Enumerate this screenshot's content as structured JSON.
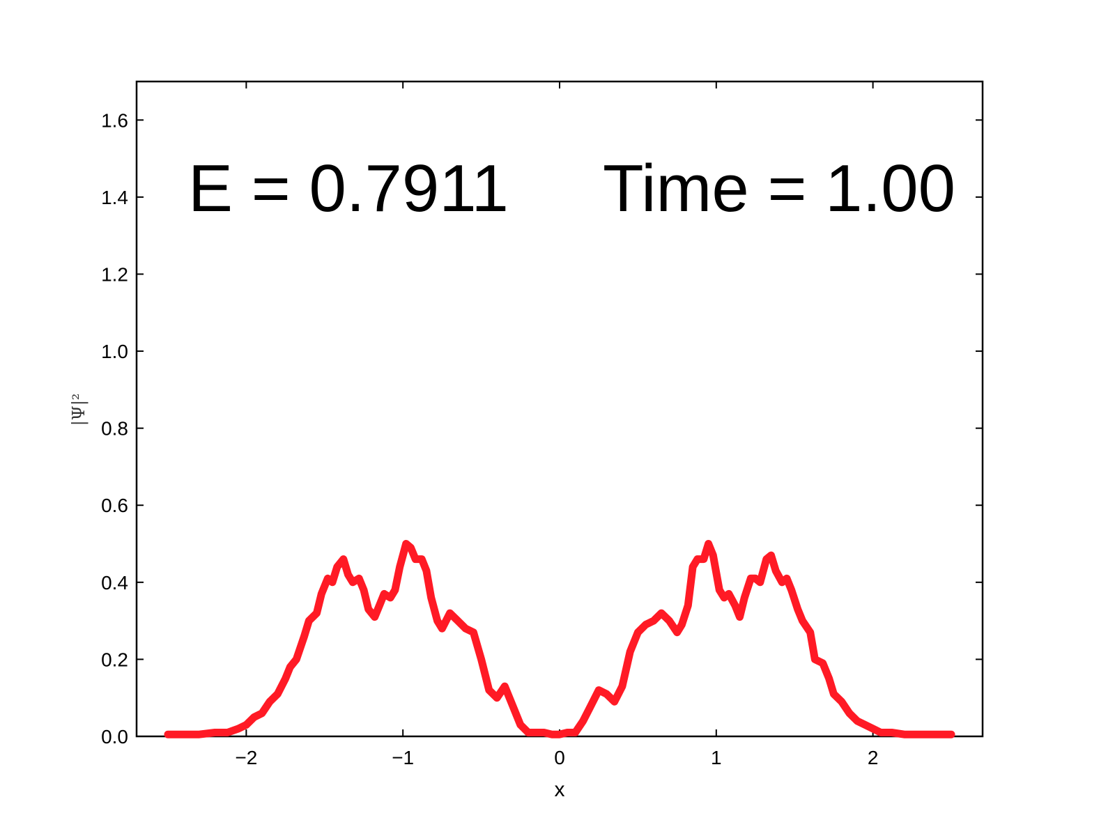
{
  "chart_data": {
    "type": "line",
    "title": "",
    "xlabel": "x",
    "ylabel": "|Ψ|²",
    "xlim": [
      -2.7,
      2.7
    ],
    "ylim": [
      0,
      1.7
    ],
    "xticks": [
      {
        "value": -2,
        "label": "−2"
      },
      {
        "value": -1,
        "label": "−1"
      },
      {
        "value": 0,
        "label": "0"
      },
      {
        "value": 1,
        "label": "1"
      },
      {
        "value": 2,
        "label": "2"
      }
    ],
    "yticks": [
      {
        "value": 0.0,
        "label": "0.0"
      },
      {
        "value": 0.2,
        "label": "0.2"
      },
      {
        "value": 0.4,
        "label": "0.4"
      },
      {
        "value": 0.6,
        "label": "0.6"
      },
      {
        "value": 0.8,
        "label": "0.8"
      },
      {
        "value": 1.0,
        "label": "1.0"
      },
      {
        "value": 1.2,
        "label": "1.2"
      },
      {
        "value": 1.4,
        "label": "1.4"
      },
      {
        "value": 1.6,
        "label": "1.6"
      }
    ],
    "grid": false,
    "annotations": {
      "energy": "E = 0.7911",
      "time": "Time = 1.00"
    },
    "series": [
      {
        "color": "#ff1a25",
        "x": [
          -2.5,
          -2.4,
          -2.3,
          -2.2,
          -2.12,
          -2.05,
          -2.0,
          -1.95,
          -1.9,
          -1.85,
          -1.8,
          -1.75,
          -1.72,
          -1.68,
          -1.63,
          -1.6,
          -1.55,
          -1.52,
          -1.48,
          -1.45,
          -1.42,
          -1.38,
          -1.35,
          -1.32,
          -1.28,
          -1.25,
          -1.22,
          -1.18,
          -1.15,
          -1.12,
          -1.08,
          -1.05,
          -1.02,
          -0.98,
          -0.95,
          -0.92,
          -0.88,
          -0.85,
          -0.82,
          -0.78,
          -0.75,
          -0.7,
          -0.65,
          -0.6,
          -0.55,
          -0.5,
          -0.45,
          -0.4,
          -0.35,
          -0.3,
          -0.25,
          -0.2,
          -0.15,
          -0.1,
          -0.05,
          0.0,
          0.05,
          0.1,
          0.15,
          0.2,
          0.25,
          0.3,
          0.35,
          0.4,
          0.45,
          0.5,
          0.55,
          0.6,
          0.65,
          0.7,
          0.75,
          0.78,
          0.82,
          0.85,
          0.88,
          0.92,
          0.95,
          0.98,
          1.02,
          1.05,
          1.08,
          1.12,
          1.15,
          1.18,
          1.22,
          1.25,
          1.28,
          1.32,
          1.35,
          1.38,
          1.42,
          1.45,
          1.48,
          1.52,
          1.55,
          1.6,
          1.63,
          1.68,
          1.72,
          1.75,
          1.8,
          1.85,
          1.9,
          1.95,
          2.0,
          2.05,
          2.12,
          2.2,
          2.3,
          2.4,
          2.5
        ],
        "y": [
          0.005,
          0.005,
          0.005,
          0.01,
          0.01,
          0.02,
          0.03,
          0.05,
          0.06,
          0.09,
          0.11,
          0.15,
          0.18,
          0.2,
          0.26,
          0.3,
          0.32,
          0.37,
          0.41,
          0.4,
          0.44,
          0.46,
          0.42,
          0.4,
          0.41,
          0.38,
          0.33,
          0.31,
          0.34,
          0.37,
          0.36,
          0.38,
          0.44,
          0.5,
          0.49,
          0.46,
          0.46,
          0.43,
          0.36,
          0.3,
          0.28,
          0.32,
          0.3,
          0.28,
          0.27,
          0.2,
          0.12,
          0.1,
          0.13,
          0.08,
          0.03,
          0.01,
          0.01,
          0.01,
          0.005,
          0.005,
          0.01,
          0.01,
          0.04,
          0.08,
          0.12,
          0.11,
          0.09,
          0.13,
          0.22,
          0.27,
          0.29,
          0.3,
          0.32,
          0.3,
          0.27,
          0.29,
          0.34,
          0.44,
          0.46,
          0.46,
          0.5,
          0.47,
          0.38,
          0.36,
          0.37,
          0.34,
          0.31,
          0.36,
          0.41,
          0.41,
          0.4,
          0.46,
          0.47,
          0.43,
          0.4,
          0.41,
          0.38,
          0.33,
          0.3,
          0.27,
          0.2,
          0.19,
          0.15,
          0.11,
          0.09,
          0.06,
          0.04,
          0.03,
          0.02,
          0.01,
          0.01,
          0.005,
          0.005,
          0.005,
          0.005
        ]
      }
    ]
  }
}
